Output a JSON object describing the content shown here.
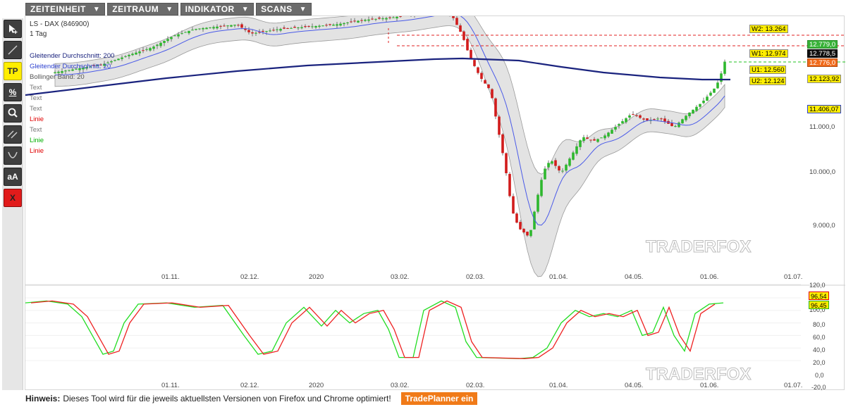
{
  "menu": [
    {
      "label": "ZEITEINHEIT",
      "icon": "caret-down-icon"
    },
    {
      "label": "ZEITRAUM",
      "icon": "caret-down-icon"
    },
    {
      "label": "INDIKATOR",
      "icon": "caret-down-icon"
    },
    {
      "label": "SCANS",
      "icon": "caret-down-icon"
    }
  ],
  "tools": {
    "cursor": "cursor-add-icon",
    "line": "line-tool-icon",
    "tp_label": "TP",
    "percent_label": "%",
    "zoom": "magnifier-icon",
    "parallel": "parallel-lines-icon",
    "curve": "curve-tool-icon",
    "text_label": "aA",
    "delete_label": "X"
  },
  "chart": {
    "title": "LS - DAX (846900)",
    "timeframe": "1 Tag",
    "overlays": [
      {
        "text": "Gleitender Durchschnitt: 200",
        "color": "#1a237e"
      },
      {
        "text": "Gleitender Durchschnitt: 20",
        "color": "#2b3fcf"
      },
      {
        "text": "Bollinger Band: 20",
        "color": "#555555"
      },
      {
        "text": "Text",
        "color": "#777777"
      },
      {
        "text": "Text",
        "color": "#777777"
      },
      {
        "text": "Text",
        "color": "#777777"
      },
      {
        "text": "Linie",
        "color": "#e00000"
      },
      {
        "text": "Text",
        "color": "#777777"
      },
      {
        "text": "Linie",
        "color": "#00b000"
      },
      {
        "text": "Linie",
        "color": "#e00000"
      }
    ],
    "price_axis": [
      "10.000,0",
      "11.000,0",
      "9.000,0"
    ],
    "date_labels": [
      "01.11.",
      "02.12.",
      "2020",
      "03.02.",
      "02.03.",
      "01.04.",
      "04.05.",
      "01.06.",
      "01.07."
    ],
    "tags": {
      "w2": "W2: 13.264",
      "w1": "W1: 12.974",
      "u1": "U1: 12.560",
      "u2": "U2: 12.124",
      "p1": "12.779,0",
      "p2": "12.778,5",
      "p3": "12.776,0",
      "p4": "12.123,92",
      "p5": "11.406,07"
    },
    "watermark": "TRADERFOX",
    "colors": {
      "up": "#2eb82e",
      "down": "#d11c1c",
      "ma200": "#1a237e",
      "ma20": "#4a5ae8",
      "band": "#d9d9d9"
    }
  },
  "oscillator": {
    "axis": [
      "120,0",
      "100,0",
      "80,0",
      "60,0",
      "40,0",
      "20,0",
      "0,0",
      "-20,0"
    ],
    "tags": {
      "red": "96,54",
      "green": "96,45"
    }
  },
  "footer": {
    "label": "Hinweis:",
    "text": "Dieses Tool wird für die jeweils aktuellsten Versionen von Firefox und Chrome optimiert!",
    "button": "TradePlanner ein"
  }
}
